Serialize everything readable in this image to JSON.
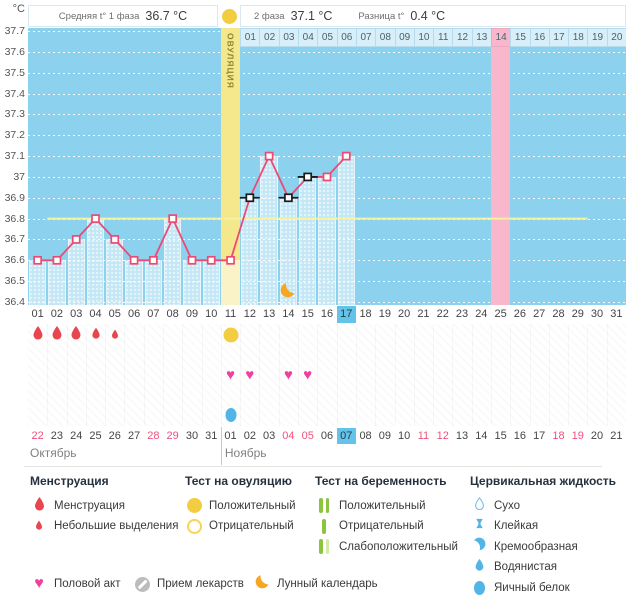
{
  "header": {
    "unit_label": "°C",
    "phase1_label": "Средняя t° 1 фаза",
    "phase1_value": "36.7 °C",
    "phase2_label": "2 фаза",
    "phase2_value": "37.1 °C",
    "diff_label": "Разница t°",
    "diff_value": "0.4 °C",
    "ovulation_icon": "ovulation-positive-circle"
  },
  "chart_data": {
    "type": "line",
    "ylabel": "°C",
    "ylim": [
      36.4,
      37.7
    ],
    "yticks": [
      "37.7",
      "37.6",
      "37.5",
      "37.4",
      "37.3",
      "37.2",
      "37.1",
      "37",
      "36.9",
      "36.8",
      "36.7",
      "36.6",
      "36.5",
      "36.4"
    ],
    "grid": true,
    "cycle_days_shown": 31,
    "series": [
      {
        "name": "temperature",
        "points": [
          {
            "day": 1,
            "temp": 36.6
          },
          {
            "day": 2,
            "temp": 36.6
          },
          {
            "day": 3,
            "temp": 36.7
          },
          {
            "day": 4,
            "temp": 36.8
          },
          {
            "day": 5,
            "temp": 36.7
          },
          {
            "day": 6,
            "temp": 36.6
          },
          {
            "day": 7,
            "temp": 36.6
          },
          {
            "day": 8,
            "temp": 36.8
          },
          {
            "day": 9,
            "temp": 36.6
          },
          {
            "day": 10,
            "temp": 36.6
          },
          {
            "day": 11,
            "temp": 36.6
          },
          {
            "day": 12,
            "temp": 36.9,
            "excluded": true
          },
          {
            "day": 13,
            "temp": 37.1
          },
          {
            "day": 14,
            "temp": 36.9,
            "excluded": true
          },
          {
            "day": 15,
            "temp": 37.0,
            "excluded": true
          },
          {
            "day": 16,
            "temp": 37.0
          },
          {
            "day": 17,
            "temp": 37.1
          }
        ]
      }
    ],
    "coverline": {
      "value": 36.8,
      "from_day": 2,
      "to_day": 29
    },
    "ovulation_day": 11,
    "ovulation_band_label": "ОВУЛЯЦИЯ",
    "expected_period_day": 25,
    "moon_day": 14,
    "current_cycle_day": 17,
    "phase2_day_labels": [
      "01",
      "02",
      "03",
      "04",
      "05",
      "06",
      "07",
      "08",
      "09",
      "10",
      "11",
      "12",
      "13",
      "14",
      "15",
      "16",
      "17",
      "18",
      "19",
      "20"
    ]
  },
  "events": {
    "menstruation": [
      {
        "day": 1,
        "size": "large"
      },
      {
        "day": 2,
        "size": "large"
      },
      {
        "day": 3,
        "size": "large"
      },
      {
        "day": 4,
        "size": "medium"
      },
      {
        "day": 5,
        "size": "small"
      }
    ],
    "ovulation_test_positive_days": [
      11
    ],
    "intercourse_days": [
      11,
      12,
      14,
      15
    ],
    "cervical_fluid": [
      {
        "day": 11,
        "type": "Яичный белок"
      }
    ]
  },
  "calendar": {
    "cycle_day_labels": [
      "01",
      "02",
      "03",
      "04",
      "05",
      "06",
      "07",
      "08",
      "09",
      "10",
      "11",
      "12",
      "13",
      "14",
      "15",
      "16",
      "17",
      "18",
      "19",
      "20",
      "21",
      "22",
      "23",
      "24",
      "25",
      "26",
      "27",
      "28",
      "29",
      "30",
      "31"
    ],
    "months": [
      {
        "name": "Октябрь",
        "dates": [
          {
            "label": "22",
            "weekend": true
          },
          {
            "label": "23"
          },
          {
            "label": "24"
          },
          {
            "label": "25"
          },
          {
            "label": "26"
          },
          {
            "label": "27"
          },
          {
            "label": "28",
            "weekend": true
          },
          {
            "label": "29",
            "weekend": true
          },
          {
            "label": "30"
          },
          {
            "label": "31"
          }
        ]
      },
      {
        "name": "Ноябрь",
        "dates": [
          {
            "label": "01"
          },
          {
            "label": "02"
          },
          {
            "label": "03"
          },
          {
            "label": "04",
            "weekend": true
          },
          {
            "label": "05",
            "weekend": true
          },
          {
            "label": "06"
          },
          {
            "label": "07",
            "current": true
          },
          {
            "label": "08"
          },
          {
            "label": "09"
          },
          {
            "label": "10"
          },
          {
            "label": "11",
            "weekend": true
          },
          {
            "label": "12",
            "weekend": true
          },
          {
            "label": "13"
          },
          {
            "label": "14"
          },
          {
            "label": "15"
          },
          {
            "label": "16"
          },
          {
            "label": "17"
          },
          {
            "label": "18",
            "weekend": true
          },
          {
            "label": "19",
            "weekend": true
          },
          {
            "label": "20"
          },
          {
            "label": "21"
          }
        ]
      }
    ]
  },
  "legend": {
    "groups": [
      {
        "title": "Менструация",
        "items": [
          {
            "icon": "drop-large",
            "label": "Менструация"
          },
          {
            "icon": "drop-small",
            "label": "Небольшие выделения"
          }
        ]
      },
      {
        "title": "Тест на овуляцию",
        "items": [
          {
            "icon": "circle-filled-yellow",
            "label": "Положительный"
          },
          {
            "icon": "circle-outline-yellow",
            "label": "Отрицательный"
          }
        ]
      },
      {
        "title": "Тест на беременность",
        "items": [
          {
            "icon": "preg-positive",
            "label": "Положительный"
          },
          {
            "icon": "preg-negative",
            "label": "Отрицательный"
          },
          {
            "icon": "preg-weak",
            "label": "Слабоположительный"
          }
        ]
      },
      {
        "title": "Цервикальная жидкость",
        "items": [
          {
            "icon": "cf-dry",
            "label": "Сухо"
          },
          {
            "icon": "cf-sticky",
            "label": "Клейкая"
          },
          {
            "icon": "cf-creamy",
            "label": "Кремообразная"
          },
          {
            "icon": "cf-watery",
            "label": "Водянистая"
          },
          {
            "icon": "cf-eggwhite",
            "label": "Яичный белок"
          }
        ]
      }
    ],
    "misc": [
      {
        "icon": "heart",
        "label": "Половой акт"
      },
      {
        "icon": "medication",
        "label": "Прием лекарств"
      },
      {
        "icon": "moon",
        "label": "Лунный календарь"
      }
    ]
  },
  "colors": {
    "chart_bg": "#8cd2ef",
    "bar_fill": "#c4e7f6",
    "ovulation_band": "#f5e88c",
    "expected_period_band": "#f8b7cb",
    "temp_line": "#ec4a72",
    "excluded_marker": "#1a1a1a",
    "coverline": "#f4f1a0",
    "ovulation_test": "#f2cd40",
    "menstruation": "#e8464e",
    "intercourse": "#f23f9f",
    "cervical_fluid": "#53b4e6",
    "pregnancy_test": "#8cc43e",
    "weekend_text": "#f0517e",
    "current_day_bg": "#63c3e9",
    "moon": "#f5a623"
  }
}
